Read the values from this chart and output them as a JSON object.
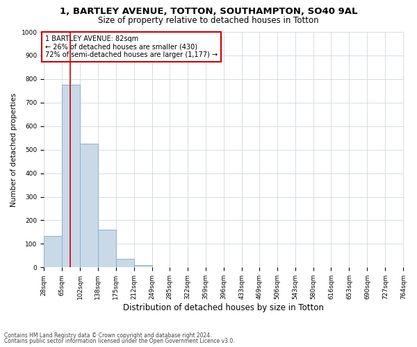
{
  "title1": "1, BARTLEY AVENUE, TOTTON, SOUTHAMPTON, SO40 9AL",
  "title2": "Size of property relative to detached houses in Totton",
  "xlabel": "Distribution of detached houses by size in Totton",
  "ylabel": "Number of detached properties",
  "bar_edges": [
    28,
    65,
    102,
    138,
    175,
    212,
    249,
    285,
    322,
    359,
    396,
    433,
    469,
    506,
    543,
    580,
    616,
    653,
    690,
    727,
    764
  ],
  "bar_heights": [
    133,
    775,
    525,
    160,
    35,
    10,
    0,
    0,
    0,
    0,
    0,
    0,
    0,
    0,
    0,
    0,
    0,
    0,
    0,
    0
  ],
  "bar_color": "#c9d9e8",
  "bar_edgecolor": "#8ab0cc",
  "property_size": 82,
  "red_line_color": "#cc0000",
  "annotation_text": "1 BARTLEY AVENUE: 82sqm\n← 26% of detached houses are smaller (430)\n72% of semi-detached houses are larger (1,177) →",
  "annotation_box_color": "#ffffff",
  "annotation_box_edgecolor": "#cc0000",
  "ylim": [
    0,
    1000
  ],
  "yticks": [
    0,
    100,
    200,
    300,
    400,
    500,
    600,
    700,
    800,
    900,
    1000
  ],
  "footnote1": "Contains HM Land Registry data © Crown copyright and database right 2024.",
  "footnote2": "Contains public sector information licensed under the Open Government Licence v3.0.",
  "background_color": "#ffffff",
  "grid_color": "#d0d8e0",
  "title1_fontsize": 9.5,
  "title2_fontsize": 8.5,
  "xlabel_fontsize": 8.5,
  "ylabel_fontsize": 7.5,
  "tick_fontsize": 6.5,
  "annotation_fontsize": 7,
  "footnote_fontsize": 5.5
}
